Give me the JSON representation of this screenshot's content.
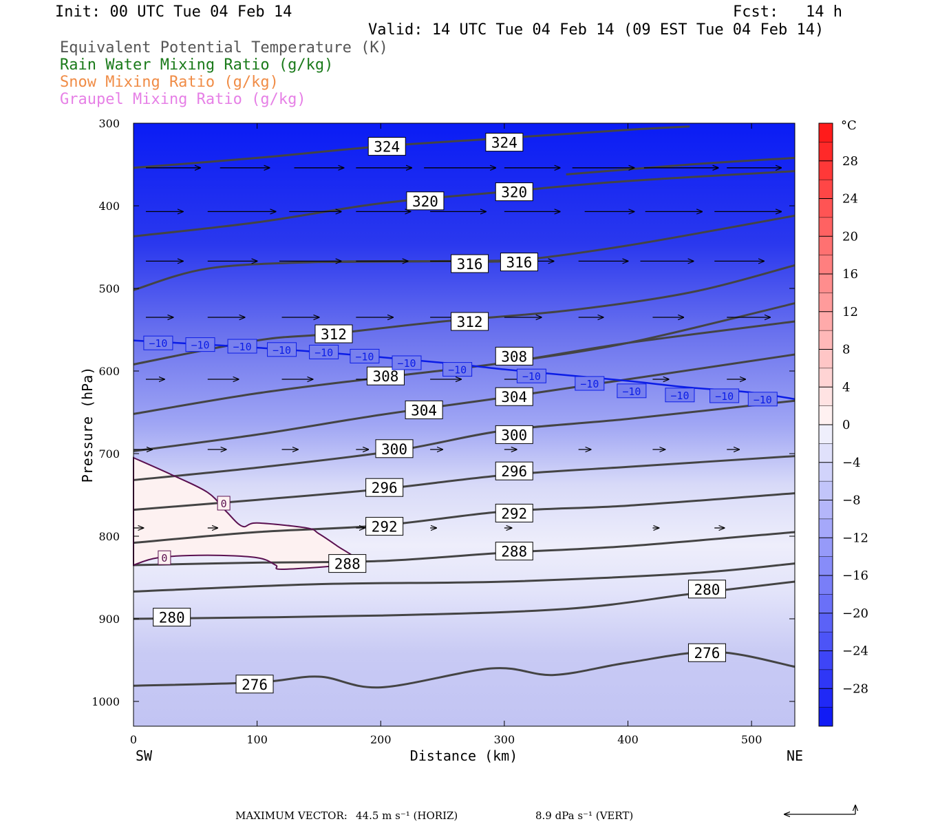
{
  "header": {
    "init": "Init: 00 UTC Tue 04 Feb 14",
    "fcst": "Fcst:   14 h",
    "valid": "Valid: 14 UTC Tue 04 Feb 14 (09 EST Tue 04 Feb 14)"
  },
  "legend": [
    {
      "text": "Equivalent Potential Temperature (K)",
      "color": "#555555"
    },
    {
      "text": "Rain Water Mixing Ratio (g/kg)",
      "color": "#1a7a1a"
    },
    {
      "text": "Snow Mixing Ratio (g/kg)",
      "color": "#f08c46"
    },
    {
      "text": "Graupel Mixing Ratio (g/kg)",
      "color": "#e680e6"
    }
  ],
  "footer": {
    "max_vector_label": "MAXIMUM VECTOR:",
    "horiz": "44.5 m s⁻¹ (HORIZ)",
    "vert": "8.9 dPa s⁻¹ (VERT)"
  },
  "chart_data": {
    "type": "heatmap",
    "xlabel": "Distance (km)",
    "ylabel": "Pressure (hPa)",
    "xlim": [
      0,
      535
    ],
    "ylim": [
      1030,
      300
    ],
    "x_ticks": [
      0,
      100,
      200,
      300,
      400,
      500
    ],
    "y_ticks": [
      300,
      400,
      500,
      600,
      700,
      800,
      900,
      1000
    ],
    "x_end_labels": {
      "left": "SW",
      "right": "NE"
    },
    "colorbar": {
      "unit": "°C",
      "ticks": [
        28,
        24,
        20,
        16,
        12,
        8,
        4,
        0,
        -4,
        -8,
        -12,
        -16,
        -20,
        -24,
        -28
      ],
      "tick_labels": [
        "28",
        "24",
        "20",
        "16",
        "12",
        "8",
        "4",
        "0",
        "−4",
        "−8",
        "−12",
        "−16",
        "−20",
        "−24",
        "−28"
      ],
      "range": [
        -32,
        32
      ]
    },
    "theta_e_contours": [
      {
        "label": "324",
        "points": [
          [
            0,
            354
          ],
          [
            100,
            342
          ],
          [
            200,
            328
          ],
          [
            300,
            318
          ],
          [
            400,
            308
          ],
          [
            450,
            304
          ]
        ],
        "labels_at": [
          [
            205,
            328
          ],
          [
            300,
            323
          ]
        ]
      },
      {
        "label": "",
        "points": [
          [
            350,
            362
          ],
          [
            450,
            350
          ],
          [
            535,
            342
          ]
        ],
        "labels_at": []
      },
      {
        "label": "320",
        "points": [
          [
            0,
            437
          ],
          [
            100,
            420
          ],
          [
            200,
            397
          ],
          [
            300,
            383
          ],
          [
            400,
            370
          ],
          [
            535,
            358
          ]
        ],
        "labels_at": [
          [
            236,
            394
          ],
          [
            308,
            383
          ]
        ]
      },
      {
        "label": "",
        "points": [
          [
            0,
            502
          ],
          [
            60,
            476
          ],
          [
            150,
            468
          ],
          [
            250,
            467
          ],
          [
            310,
            466
          ],
          [
            400,
            448
          ],
          [
            535,
            412
          ]
        ],
        "labels_at": []
      },
      {
        "label": "316",
        "points": [
          [
            150,
            468
          ],
          [
            266,
            467
          ],
          [
            310,
            466
          ]
        ],
        "labels_at": [
          [
            272,
            470
          ],
          [
            312,
            468
          ]
        ]
      },
      {
        "label": "312",
        "points": [
          [
            0,
            592
          ],
          [
            100,
            563
          ],
          [
            160,
            555
          ],
          [
            250,
            540
          ],
          [
            350,
            527
          ],
          [
            450,
            505
          ],
          [
            535,
            472
          ]
        ],
        "labels_at": [
          [
            162,
            555
          ],
          [
            272,
            540
          ]
        ]
      },
      {
        "label": "308",
        "points": [
          [
            0,
            652
          ],
          [
            100,
            627
          ],
          [
            200,
            608
          ],
          [
            300,
            590
          ],
          [
            400,
            566
          ],
          [
            535,
            540
          ]
        ],
        "labels_at": [
          [
            204,
            606
          ],
          [
            308,
            582
          ]
        ]
      },
      {
        "label": "",
        "points": [
          [
            300,
            590
          ],
          [
            400,
            566
          ],
          [
            535,
            518
          ]
        ],
        "labels_at": []
      },
      {
        "label": "304",
        "points": [
          [
            0,
            697
          ],
          [
            100,
            677
          ],
          [
            200,
            653
          ],
          [
            300,
            632
          ],
          [
            400,
            610
          ],
          [
            535,
            580
          ]
        ],
        "labels_at": [
          [
            235,
            647
          ],
          [
            308,
            631
          ]
        ]
      },
      {
        "label": "300",
        "points": [
          [
            0,
            732
          ],
          [
            100,
            717
          ],
          [
            210,
            697
          ],
          [
            300,
            672
          ],
          [
            400,
            658
          ],
          [
            535,
            636
          ]
        ],
        "labels_at": [
          [
            211,
            694
          ],
          [
            308,
            677
          ]
        ]
      },
      {
        "label": "296",
        "points": [
          [
            0,
            768
          ],
          [
            100,
            756
          ],
          [
            200,
            743
          ],
          [
            300,
            726
          ],
          [
            400,
            716
          ],
          [
            535,
            703
          ]
        ],
        "labels_at": [
          [
            203,
            741
          ],
          [
            308,
            721
          ]
        ]
      },
      {
        "label": "292",
        "points": [
          [
            0,
            808
          ],
          [
            100,
            795
          ],
          [
            200,
            787
          ],
          [
            300,
            770
          ],
          [
            400,
            763
          ],
          [
            535,
            748
          ]
        ],
        "labels_at": [
          [
            203,
            788
          ],
          [
            308,
            772
          ]
        ]
      },
      {
        "label": "288",
        "points": [
          [
            0,
            835
          ],
          [
            100,
            832
          ],
          [
            200,
            830
          ],
          [
            300,
            820
          ],
          [
            400,
            812
          ],
          [
            535,
            795
          ]
        ],
        "labels_at": [
          [
            173,
            833
          ],
          [
            308,
            818
          ]
        ]
      },
      {
        "label": "",
        "points": [
          [
            0,
            867
          ],
          [
            150,
            858
          ],
          [
            300,
            855
          ],
          [
            450,
            845
          ],
          [
            535,
            833
          ]
        ],
        "labels_at": []
      },
      {
        "label": "280",
        "points": [
          [
            0,
            900
          ],
          [
            200,
            896
          ],
          [
            350,
            888
          ],
          [
            450,
            870
          ],
          [
            535,
            855
          ]
        ],
        "labels_at": [
          [
            31,
            898
          ],
          [
            464,
            864
          ]
        ]
      },
      {
        "label": "276",
        "points": [
          [
            0,
            981
          ],
          [
            100,
            977
          ],
          [
            150,
            970
          ],
          [
            200,
            983
          ],
          [
            290,
            960
          ],
          [
            340,
            968
          ],
          [
            400,
            953
          ],
          [
            470,
            940
          ],
          [
            535,
            958
          ]
        ],
        "labels_at": [
          [
            98,
            979
          ],
          [
            464,
            941
          ]
        ]
      }
    ],
    "zero_isotherm_label": "0",
    "zero_isotherm": [
      [
        0,
        705
      ],
      [
        30,
        725
      ],
      [
        60,
        747
      ],
      [
        75,
        770
      ],
      [
        88,
        788
      ],
      [
        100,
        784
      ],
      [
        140,
        790
      ],
      [
        150,
        797
      ],
      [
        165,
        812
      ],
      [
        180,
        828
      ],
      [
        168,
        835
      ],
      [
        120,
        840
      ],
      [
        115,
        835
      ],
      [
        100,
        826
      ],
      [
        60,
        823
      ],
      [
        20,
        826
      ],
      [
        0,
        835
      ]
    ],
    "zero_labels_at": [
      [
        73,
        760
      ],
      [
        25,
        826
      ]
    ],
    "minus10_isotherm_label": "−10",
    "minus10_isotherm": [
      [
        0,
        563
      ],
      [
        60,
        568
      ],
      [
        150,
        577
      ],
      [
        250,
        590
      ],
      [
        300,
        598
      ],
      [
        350,
        605
      ],
      [
        400,
        612
      ],
      [
        450,
        620
      ],
      [
        500,
        626
      ],
      [
        535,
        634
      ]
    ],
    "minus10_labels_at": [
      [
        20,
        566
      ],
      [
        54,
        568
      ],
      [
        88,
        570
      ],
      [
        120,
        574
      ],
      [
        154,
        577
      ],
      [
        187,
        582
      ],
      [
        221,
        590
      ],
      [
        262,
        598
      ],
      [
        322,
        606
      ],
      [
        369,
        615
      ],
      [
        403,
        624
      ],
      [
        442,
        629
      ],
      [
        478,
        630
      ],
      [
        509,
        634
      ]
    ],
    "wind_vectors": [
      {
        "p": 354,
        "x0": 10,
        "x1": 54
      },
      {
        "p": 354,
        "x0": 70,
        "x1": 110
      },
      {
        "p": 354,
        "x0": 130,
        "x1": 170
      },
      {
        "p": 354,
        "x0": 180,
        "x1": 225
      },
      {
        "p": 354,
        "x0": 235,
        "x1": 293
      },
      {
        "p": 354,
        "x0": 300,
        "x1": 345
      },
      {
        "p": 354,
        "x0": 355,
        "x1": 405
      },
      {
        "p": 354,
        "x0": 413,
        "x1": 473
      },
      {
        "p": 354,
        "x0": 480,
        "x1": 524
      },
      {
        "p": 407,
        "x0": 10,
        "x1": 40
      },
      {
        "p": 407,
        "x0": 60,
        "x1": 115
      },
      {
        "p": 407,
        "x0": 126,
        "x1": 168
      },
      {
        "p": 407,
        "x0": 180,
        "x1": 224
      },
      {
        "p": 407,
        "x0": 240,
        "x1": 285
      },
      {
        "p": 407,
        "x0": 300,
        "x1": 345
      },
      {
        "p": 407,
        "x0": 365,
        "x1": 405
      },
      {
        "p": 407,
        "x0": 414,
        "x1": 460
      },
      {
        "p": 407,
        "x0": 470,
        "x1": 524
      },
      {
        "p": 467,
        "x0": 10,
        "x1": 40
      },
      {
        "p": 467,
        "x0": 60,
        "x1": 100
      },
      {
        "p": 467,
        "x0": 118,
        "x1": 168
      },
      {
        "p": 467,
        "x0": 180,
        "x1": 222
      },
      {
        "p": 467,
        "x0": 240,
        "x1": 282
      },
      {
        "p": 467,
        "x0": 300,
        "x1": 340
      },
      {
        "p": 467,
        "x0": 360,
        "x1": 400
      },
      {
        "p": 467,
        "x0": 410,
        "x1": 453
      },
      {
        "p": 467,
        "x0": 470,
        "x1": 510
      },
      {
        "p": 535,
        "x0": 10,
        "x1": 32
      },
      {
        "p": 535,
        "x0": 60,
        "x1": 90
      },
      {
        "p": 535,
        "x0": 120,
        "x1": 150
      },
      {
        "p": 535,
        "x0": 180,
        "x1": 210
      },
      {
        "p": 535,
        "x0": 240,
        "x1": 280
      },
      {
        "p": 535,
        "x0": 300,
        "x1": 330
      },
      {
        "p": 535,
        "x0": 360,
        "x1": 380
      },
      {
        "p": 535,
        "x0": 420,
        "x1": 445
      },
      {
        "p": 535,
        "x0": 480,
        "x1": 515
      },
      {
        "p": 610,
        "x0": 10,
        "x1": 25
      },
      {
        "p": 610,
        "x0": 60,
        "x1": 85
      },
      {
        "p": 610,
        "x0": 120,
        "x1": 145
      },
      {
        "p": 610,
        "x0": 180,
        "x1": 200
      },
      {
        "p": 610,
        "x0": 240,
        "x1": 265
      },
      {
        "p": 610,
        "x0": 300,
        "x1": 315
      },
      {
        "p": 610,
        "x0": 360,
        "x1": 375
      },
      {
        "p": 610,
        "x0": 420,
        "x1": 433
      },
      {
        "p": 610,
        "x0": 480,
        "x1": 495
      },
      {
        "p": 695,
        "x0": 0,
        "x1": 15
      },
      {
        "p": 695,
        "x0": 60,
        "x1": 75
      },
      {
        "p": 695,
        "x0": 120,
        "x1": 133
      },
      {
        "p": 695,
        "x0": 180,
        "x1": 190
      },
      {
        "p": 695,
        "x0": 240,
        "x1": 250
      },
      {
        "p": 695,
        "x0": 300,
        "x1": 310
      },
      {
        "p": 695,
        "x0": 360,
        "x1": 370
      },
      {
        "p": 695,
        "x0": 420,
        "x1": 430
      },
      {
        "p": 695,
        "x0": 480,
        "x1": 490
      },
      {
        "p": 790,
        "x0": 0,
        "x1": 8
      },
      {
        "p": 790,
        "x0": 60,
        "x1": 68
      },
      {
        "p": 790,
        "x0": 180,
        "x1": 187
      },
      {
        "p": 790,
        "x0": 240,
        "x1": 245
      },
      {
        "p": 790,
        "x0": 300,
        "x1": 306
      },
      {
        "p": 790,
        "x0": 420,
        "x1": 425
      },
      {
        "p": 790,
        "x0": 470,
        "x1": 478
      }
    ]
  }
}
